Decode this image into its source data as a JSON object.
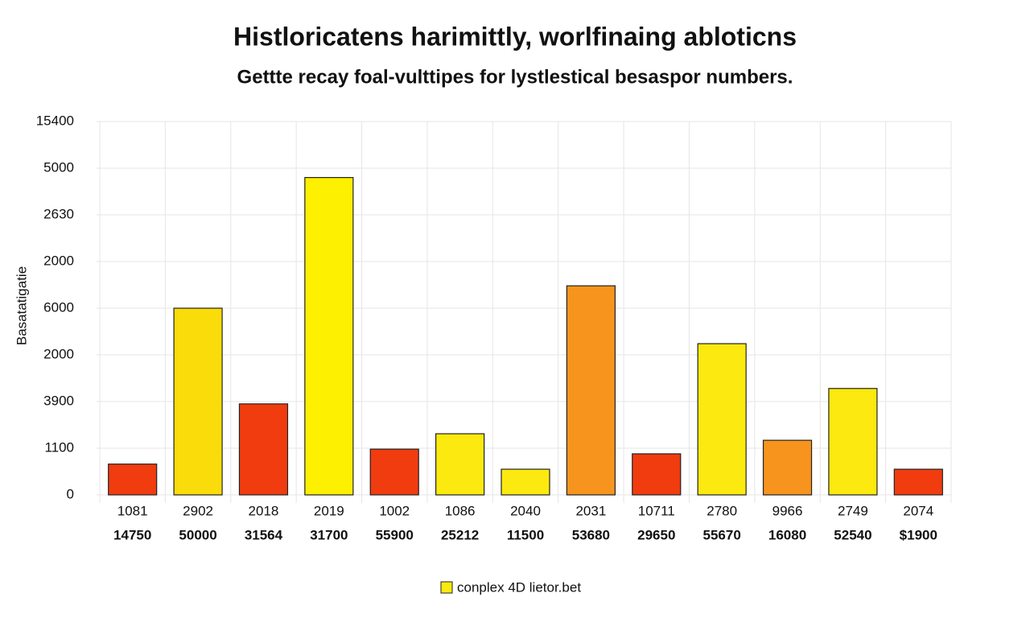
{
  "chart_data": {
    "type": "bar",
    "title": "Histloricatens harimittly, worlfinaing abloticns",
    "subtitle": "Gettte recay foal-vulttipes for lystlestical besaspor numbers.",
    "y_label": "Basatatigatie",
    "categories": [
      "1081",
      "2902",
      "2018",
      "2019",
      "1002",
      "1086",
      "2040",
      "2031",
      "10711",
      "2780",
      "9966",
      "2749",
      "2074"
    ],
    "secondary_labels": [
      "14750",
      "50000",
      "31564",
      "31700",
      "55900",
      "25212",
      "11500",
      "53680",
      "29650",
      "55670",
      "16080",
      "52540",
      "$1900"
    ],
    "values": [
      0.66,
      4.0,
      1.95,
      6.8,
      0.98,
      1.31,
      0.55,
      4.48,
      0.88,
      3.24,
      1.17,
      2.28,
      0.55
    ],
    "colors": [
      "#f03c0f",
      "#fadc0a",
      "#f03c0f",
      "#fdf000",
      "#f03c0f",
      "#fbe90f",
      "#fbe90f",
      "#f7941d",
      "#f03c0f",
      "#fbe90f",
      "#f7941d",
      "#fbe90f",
      "#f03c0f"
    ],
    "ylim": [
      0,
      8
    ],
    "yticks": [
      {
        "value": 0,
        "label": "0"
      },
      {
        "value": 1,
        "label": "1100"
      },
      {
        "value": 2,
        "label": "3900"
      },
      {
        "value": 3,
        "label": "2000"
      },
      {
        "value": 4,
        "label": "6000"
      },
      {
        "value": 5,
        "label": "2000"
      },
      {
        "value": 6,
        "label": "2630"
      },
      {
        "value": 7,
        "label": "5000"
      },
      {
        "value": 8,
        "label": "15400"
      }
    ],
    "grid": true,
    "legend": {
      "label": "conplex 4D lietor.bet",
      "color": "#fbe90f"
    }
  }
}
